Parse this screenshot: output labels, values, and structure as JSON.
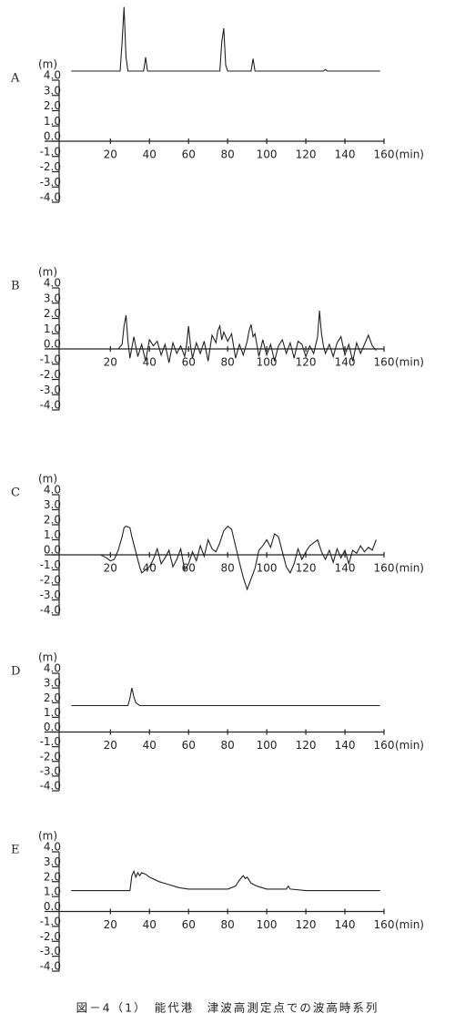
{
  "chart_data": [
    {
      "type": "line",
      "label": "A",
      "y_label": "(m)",
      "x_label": "(min)",
      "color": "#222222",
      "x": [
        0,
        25,
        26,
        27,
        28,
        29,
        37,
        38,
        39,
        76,
        77,
        78,
        79,
        80,
        92,
        93,
        94,
        129,
        130,
        131,
        158
      ],
      "values": [
        4.6,
        4.6,
        6.5,
        8.8,
        5.5,
        4.6,
        4.6,
        5.5,
        4.6,
        4.6,
        6.5,
        7.4,
        5.0,
        4.6,
        4.6,
        5.4,
        4.6,
        4.6,
        4.7,
        4.6,
        4.6
      ],
      "xlim": [
        -9,
        160
      ],
      "ylim": [
        -4,
        4
      ],
      "xticks": [
        20,
        40,
        60,
        80,
        100,
        120,
        140,
        160
      ],
      "yticks": [
        {
          "value": 4,
          "label": "4.0"
        },
        {
          "value": 3,
          "label": "3.0"
        },
        {
          "value": 2,
          "label": "2.0"
        },
        {
          "value": 1,
          "label": "1.0"
        },
        {
          "value": 0,
          "label": "0.0"
        },
        {
          "value": -1,
          "label": "-1.0"
        },
        {
          "value": -2,
          "label": "-2.0"
        },
        {
          "value": -3,
          "label": "-3.0"
        },
        {
          "value": -4,
          "label": "-4.0"
        }
      ]
    },
    {
      "type": "line",
      "label": "B",
      "y_label": "(m)",
      "x_label": "(min)",
      "color": "#222222",
      "x": [
        0,
        24,
        26,
        27,
        28,
        29,
        30,
        32,
        34,
        36,
        38,
        40,
        42,
        44,
        46,
        48,
        50,
        52,
        54,
        56,
        58,
        59,
        60,
        61,
        62,
        64,
        66,
        68,
        70,
        72,
        74,
        75,
        76,
        77,
        78,
        80,
        82,
        84,
        86,
        88,
        90,
        91,
        92,
        93,
        94,
        96,
        98,
        100,
        102,
        104,
        106,
        108,
        110,
        112,
        114,
        116,
        118,
        120,
        122,
        124,
        126,
        127,
        128,
        129,
        130,
        132,
        134,
        136,
        138,
        140,
        142,
        144,
        146,
        148,
        150,
        152,
        154,
        156
      ],
      "values": [
        0,
        0,
        0.3,
        1.5,
        2.2,
        0.5,
        -0.6,
        0.8,
        -0.5,
        0.3,
        -0.8,
        0.6,
        0.2,
        0.5,
        -0.4,
        0.3,
        -0.9,
        0.4,
        -0.3,
        0.2,
        -0.5,
        0.3,
        1.5,
        0.2,
        -0.6,
        0.4,
        -0.3,
        0.5,
        -0.8,
        0.9,
        0.4,
        1.2,
        1.5,
        0.6,
        1.1,
        0.5,
        1.0,
        -0.6,
        0.3,
        -0.4,
        0.5,
        1.2,
        1.6,
        0.8,
        1.0,
        -0.5,
        0.6,
        -0.4,
        0.3,
        -0.8,
        0.2,
        0.6,
        -0.3,
        0.4,
        -0.6,
        0.5,
        0.3,
        -0.5,
        0.2,
        -0.3,
        0.8,
        2.5,
        1.0,
        0.2,
        -0.3,
        0.3,
        -0.5,
        0.4,
        0.8,
        -0.4,
        0.3,
        -0.8,
        0.4,
        -0.3,
        0.3,
        0.9,
        0.2,
        -0.1
      ],
      "xlim": [
        -9,
        160
      ],
      "ylim": [
        -4,
        4
      ],
      "xticks": [
        20,
        40,
        60,
        80,
        100,
        120,
        140,
        160
      ],
      "yticks": [
        {
          "value": 4,
          "label": "4.0"
        },
        {
          "value": 3,
          "label": "3.0"
        },
        {
          "value": 2,
          "label": "2.0"
        },
        {
          "value": 1,
          "label": "1.0"
        },
        {
          "value": 0,
          "label": "0.0"
        },
        {
          "value": -1,
          "label": "-1.0"
        },
        {
          "value": -2,
          "label": "-2.0"
        },
        {
          "value": -3,
          "label": "-3.0"
        },
        {
          "value": -4,
          "label": "-4.0"
        }
      ]
    },
    {
      "type": "line",
      "label": "C",
      "y_label": "(m)",
      "x_label": "(min)",
      "color": "#222222",
      "x": [
        0,
        15,
        18,
        20,
        22,
        24,
        26,
        27,
        28,
        30,
        31,
        33,
        35,
        36,
        38,
        40,
        42,
        44,
        46,
        48,
        50,
        52,
        54,
        56,
        58,
        60,
        62,
        64,
        66,
        68,
        70,
        72,
        74,
        76,
        78,
        80,
        82,
        84,
        86,
        88,
        90,
        92,
        94,
        96,
        98,
        100,
        102,
        104,
        106,
        108,
        110,
        112,
        114,
        116,
        118,
        120,
        122,
        124,
        126,
        128,
        130,
        132,
        134,
        136,
        138,
        140,
        142,
        144,
        146,
        148,
        150,
        152,
        154,
        156
      ],
      "values": [
        0,
        0,
        -0.2,
        -0.4,
        -0.3,
        0.3,
        1.2,
        1.8,
        1.9,
        1.8,
        1.2,
        0.2,
        -0.8,
        -1.2,
        -1.0,
        -0.8,
        -0.3,
        0.4,
        -0.6,
        -0.2,
        0.3,
        -0.8,
        -0.3,
        0.4,
        -1.0,
        -0.6,
        0.2,
        -0.4,
        0.6,
        -0.1,
        1.0,
        0.4,
        0.2,
        0.8,
        1.6,
        1.9,
        1.7,
        0.6,
        -0.5,
        -1.5,
        -2.3,
        -1.6,
        -0.9,
        0.3,
        0.6,
        1.0,
        0.5,
        1.4,
        1.2,
        0.2,
        -0.8,
        -1.2,
        -0.6,
        0.4,
        -0.3,
        0.2,
        0.6,
        0.8,
        1.0,
        0.2,
        -0.3,
        0.3,
        -0.5,
        0.4,
        -0.2,
        0.3,
        -0.6,
        0.3,
        0.1,
        0.6,
        0.2,
        0.5,
        0.3,
        1.0
      ],
      "xlim": [
        -9,
        160
      ],
      "ylim": [
        -4,
        4
      ],
      "xticks": [
        20,
        40,
        60,
        80,
        100,
        120,
        140,
        160
      ],
      "yticks": [
        {
          "value": 4,
          "label": "4.0"
        },
        {
          "value": 3,
          "label": "3.0"
        },
        {
          "value": 2,
          "label": "2.0"
        },
        {
          "value": 1,
          "label": "1.0"
        },
        {
          "value": 0,
          "label": "0.0"
        },
        {
          "value": -1,
          "label": "-1.0"
        },
        {
          "value": -2,
          "label": "-2.0"
        },
        {
          "value": -3,
          "label": "-3.0"
        },
        {
          "value": -4,
          "label": "-4.0"
        }
      ]
    },
    {
      "type": "line",
      "label": "D",
      "y_label": "(m)",
      "x_label": "(min)",
      "color": "#222222",
      "x": [
        0,
        29,
        30,
        31,
        32,
        33,
        35,
        158
      ],
      "values": [
        1.8,
        1.8,
        2.3,
        3.0,
        2.4,
        2.0,
        1.8,
        1.8
      ],
      "xlim": [
        -9,
        160
      ],
      "ylim": [
        -4,
        4
      ],
      "xticks": [
        20,
        40,
        60,
        80,
        100,
        120,
        140,
        160
      ],
      "yticks": [
        {
          "value": 4,
          "label": "4.0"
        },
        {
          "value": 3,
          "label": "3.0"
        },
        {
          "value": 2,
          "label": "2.0"
        },
        {
          "value": 1,
          "label": "1.0"
        },
        {
          "value": 0,
          "label": "0.0"
        },
        {
          "value": -1,
          "label": "-1.0"
        },
        {
          "value": -2,
          "label": "-2.0"
        },
        {
          "value": -3,
          "label": "-3.0"
        },
        {
          "value": -4,
          "label": "-4.0"
        }
      ]
    },
    {
      "type": "line",
      "label": "E",
      "y_label": "(m)",
      "x_label": "(min)",
      "color": "#222222",
      "x": [
        0,
        30,
        31,
        32,
        33,
        34,
        35,
        36,
        38,
        40,
        45,
        50,
        55,
        60,
        70,
        80,
        84,
        86,
        88,
        89,
        90,
        92,
        95,
        100,
        105,
        110,
        111,
        112,
        120,
        158
      ],
      "values": [
        1.4,
        1.4,
        2.4,
        2.7,
        2.3,
        2.6,
        2.4,
        2.6,
        2.5,
        2.3,
        2.0,
        1.8,
        1.6,
        1.5,
        1.5,
        1.5,
        1.7,
        2.1,
        2.4,
        2.2,
        2.3,
        1.9,
        1.7,
        1.5,
        1.5,
        1.5,
        1.7,
        1.5,
        1.4,
        1.4
      ],
      "xlim": [
        -9,
        160
      ],
      "ylim": [
        -4,
        4
      ],
      "xticks": [
        20,
        40,
        60,
        80,
        100,
        120,
        140,
        160
      ],
      "yticks": [
        {
          "value": 4,
          "label": "4.0"
        },
        {
          "value": 3,
          "label": "3.0"
        },
        {
          "value": 2,
          "label": "2.0"
        },
        {
          "value": 1,
          "label": "1.0"
        },
        {
          "value": 0,
          "label": "0.0"
        },
        {
          "value": -1,
          "label": "-1.0"
        },
        {
          "value": -2,
          "label": "-2.0"
        },
        {
          "value": -3,
          "label": "-3.0"
        },
        {
          "value": -4,
          "label": "-4.0"
        }
      ]
    }
  ],
  "caption": "図－4（1）　能代港　津波高測定点での波高時系列"
}
